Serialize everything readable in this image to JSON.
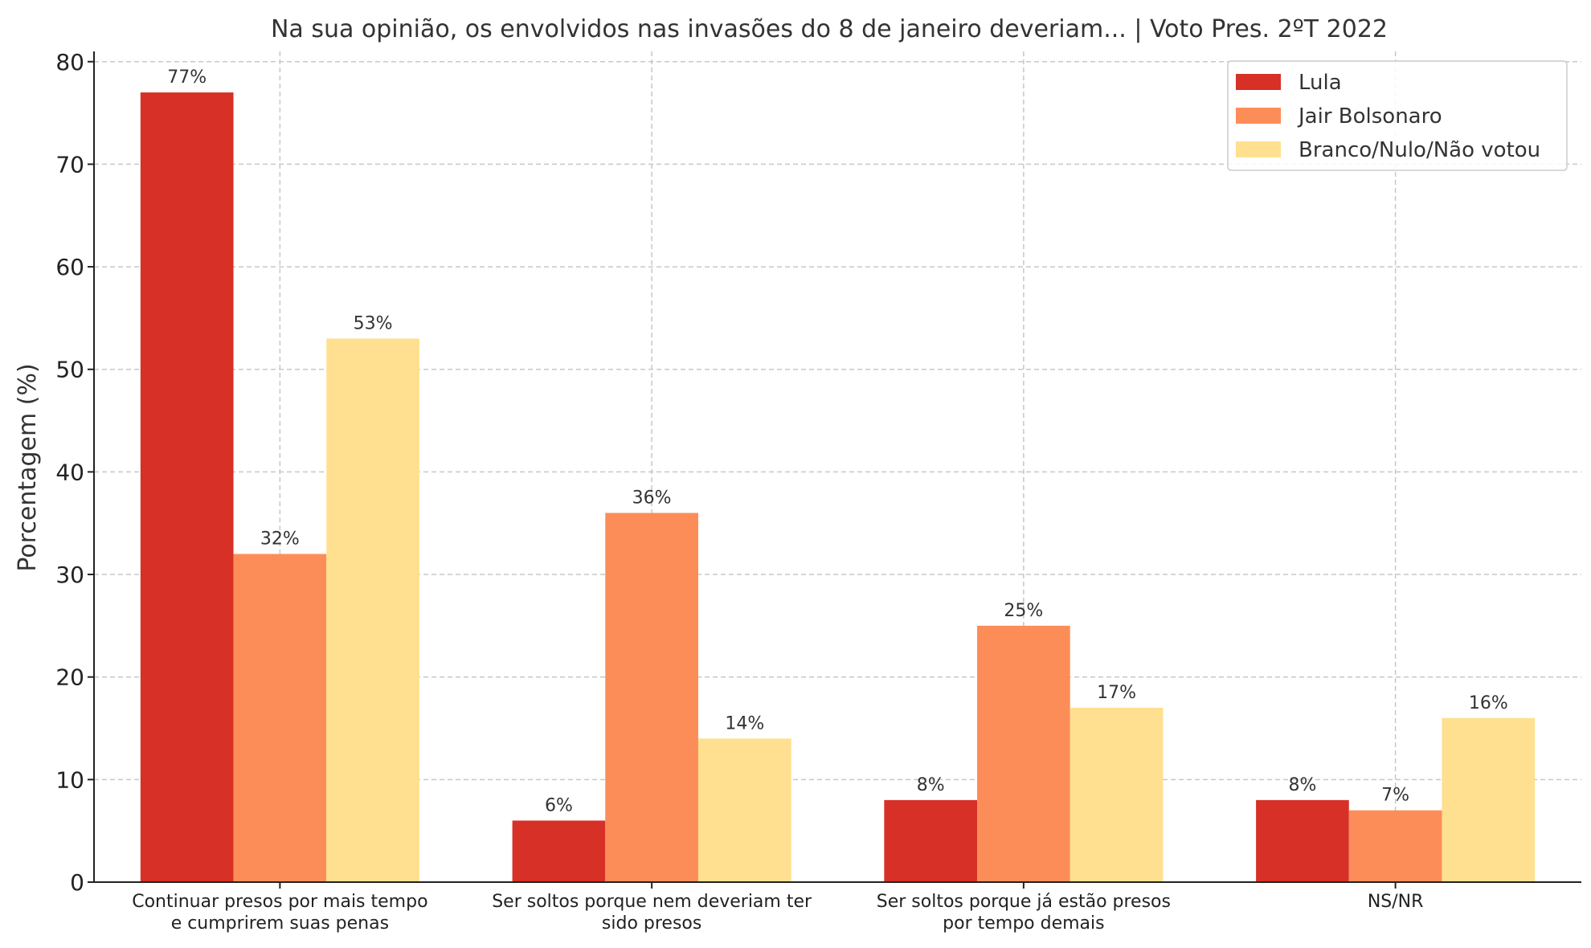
{
  "chart_data": {
    "type": "bar",
    "title": "Na sua opinião, os envolvidos nas invasões do 8 de janeiro deveriam... | Voto Pres. 2ºT 2022",
    "xlabel": "",
    "ylabel": "Porcentagem (%)",
    "ylim": [
      0,
      81
    ],
    "yticks": [
      0,
      10,
      20,
      30,
      40,
      50,
      60,
      70,
      80
    ],
    "grid": true,
    "legend_position": "top-right",
    "categories": [
      [
        "Continuar presos por mais tempo",
        "e cumprirem suas penas"
      ],
      [
        "Ser soltos porque nem deveriam ter",
        "sido presos"
      ],
      [
        "Ser soltos porque já estão presos",
        "por tempo demais"
      ],
      [
        "NS/NR"
      ]
    ],
    "series": [
      {
        "name": "Lula",
        "color": "#d73027",
        "values": [
          77,
          6,
          8,
          8
        ],
        "labels": [
          "77%",
          "6%",
          "8%",
          "8%"
        ]
      },
      {
        "name": "Jair Bolsonaro",
        "color": "#fc8d59",
        "values": [
          32,
          36,
          25,
          7
        ],
        "labels": [
          "32%",
          "36%",
          "25%",
          "7%"
        ]
      },
      {
        "name": "Branco/Nulo/Não votou",
        "color": "#fee090",
        "values": [
          53,
          14,
          17,
          16
        ],
        "labels": [
          "53%",
          "14%",
          "17%",
          "16%"
        ]
      }
    ]
  }
}
